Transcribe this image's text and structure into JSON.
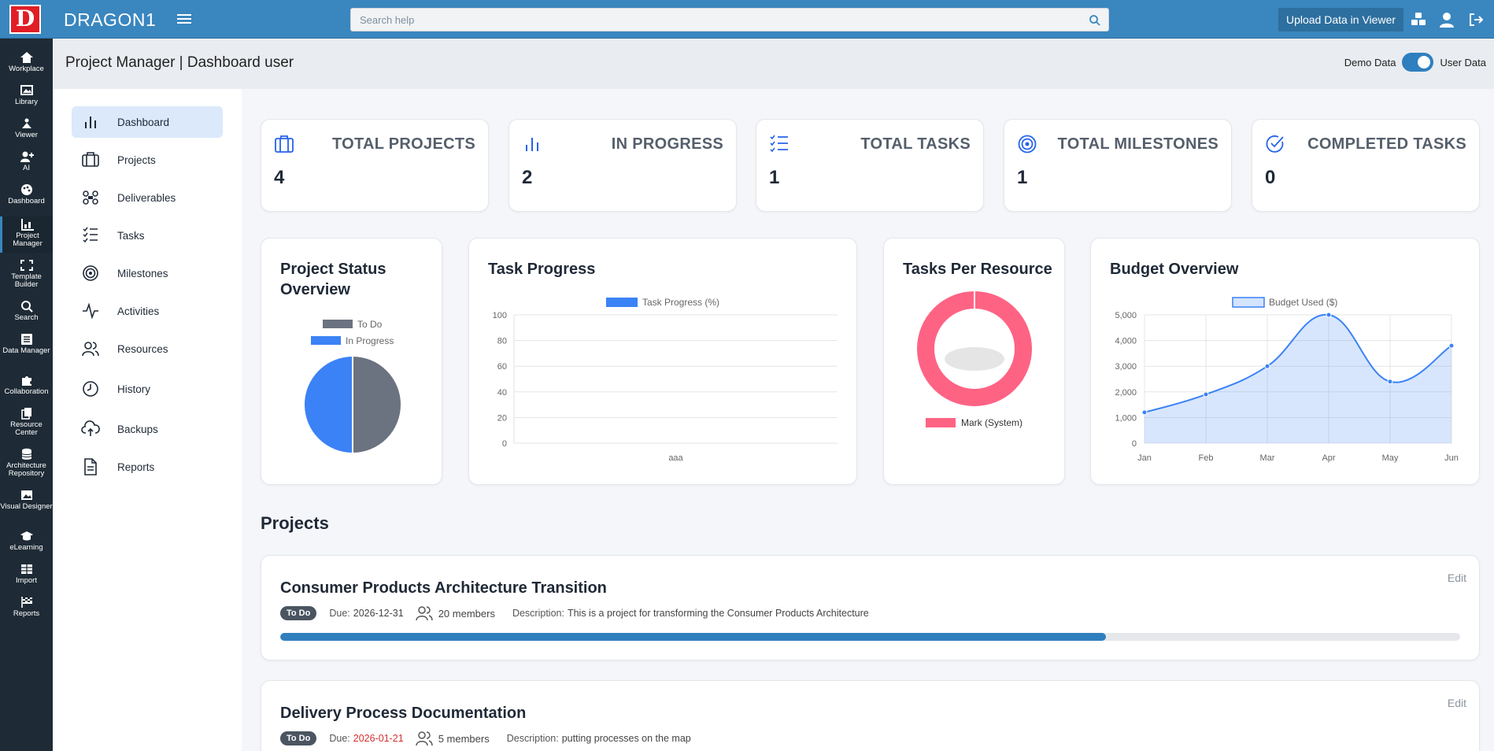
{
  "topbar": {
    "logo_letter": "D",
    "brand": "DRAGON1",
    "search_placeholder": "Search help",
    "upload_label": "Upload Data in Viewer"
  },
  "rail": {
    "items": [
      {
        "label": "Workplace",
        "icon": "home-icon"
      },
      {
        "label": "Library",
        "icon": "image-stack-icon"
      },
      {
        "label": "Viewer",
        "icon": "viewer-icon"
      },
      {
        "label": "AI",
        "icon": "user-plus-icon"
      },
      {
        "label": "Dashboard",
        "icon": "palette-icon"
      },
      {
        "label": "Project Manager",
        "icon": "chart-icon"
      },
      {
        "label": "Template Builder",
        "icon": "expand-icon"
      },
      {
        "label": "Search",
        "icon": "search-icon"
      },
      {
        "label": "Data Manager",
        "icon": "list-icon"
      },
      {
        "label": "Collaboration",
        "icon": "puzzle-icon"
      },
      {
        "label": "Resource Center",
        "icon": "copy-icon"
      },
      {
        "label": "Architecture Repository",
        "icon": "database-icon"
      },
      {
        "label": "Visual Designer",
        "icon": "picture-icon"
      },
      {
        "label": "eLearning",
        "icon": "graduation-cap-icon"
      },
      {
        "label": "Import",
        "icon": "table-icon"
      },
      {
        "label": "Reports",
        "icon": "flag-icon"
      }
    ]
  },
  "header": {
    "title": "Project Manager | Dashboard user",
    "demo_label": "Demo Data",
    "user_label": "User Data"
  },
  "sidenav": {
    "items": [
      {
        "label": "Dashboard"
      },
      {
        "label": "Projects"
      },
      {
        "label": "Deliverables"
      },
      {
        "label": "Tasks"
      },
      {
        "label": "Milestones"
      },
      {
        "label": "Activities"
      },
      {
        "label": "Resources"
      },
      {
        "label": "History"
      },
      {
        "label": "Backups"
      },
      {
        "label": "Reports"
      }
    ]
  },
  "stats": [
    {
      "label": "TOTAL PROJECTS",
      "value": "4"
    },
    {
      "label": "IN PROGRESS",
      "value": "2"
    },
    {
      "label": "TOTAL TASKS",
      "value": "1"
    },
    {
      "label": "TOTAL MILESTONES",
      "value": "1"
    },
    {
      "label": "COMPLETED TASKS",
      "value": "0"
    }
  ],
  "charts": {
    "status_title": "Project Status Overview",
    "task_title": "Task Progress",
    "resource_title": "Tasks Per Resource",
    "budget_title": "Budget Overview"
  },
  "chart_data": [
    {
      "type": "pie",
      "title": "Project Status Overview",
      "labels": [
        "To Do",
        "In Progress"
      ],
      "values": [
        2,
        2
      ],
      "colors": [
        "#6b7280",
        "#3b82f6"
      ]
    },
    {
      "type": "bar",
      "title": "Task Progress",
      "categories": [
        "aaa"
      ],
      "series": [
        {
          "name": "Task Progress (%)",
          "values": [
            0
          ]
        }
      ],
      "ylim": [
        0,
        100
      ],
      "yticks": [
        "0",
        "20",
        "40",
        "60",
        "80",
        "100"
      ],
      "color": "#3b82f6"
    },
    {
      "type": "pie",
      "title": "Tasks Per Resource",
      "labels": [
        "Mark (System)"
      ],
      "values": [
        1
      ],
      "colors": [
        "#ff6384"
      ]
    },
    {
      "type": "area",
      "title": "Budget Overview",
      "categories": [
        "Jan",
        "Feb",
        "Mar",
        "Apr",
        "May",
        "Jun"
      ],
      "series": [
        {
          "name": "Budget Used ($)",
          "values": [
            1200,
            1900,
            3000,
            5000,
            2400,
            3800
          ]
        }
      ],
      "ylim": [
        0,
        5000
      ],
      "yticks": [
        "0",
        "1,000",
        "2,000",
        "3,000",
        "4,000",
        "5,000"
      ],
      "color": "#3b82f6",
      "grid": true
    }
  ],
  "projects_section_title": "Projects",
  "projects": [
    {
      "name": "Consumer Products Architecture Transition",
      "status": "To Do",
      "due_label": "Due:",
      "due": "2026-12-31",
      "members": "20 members",
      "desc_label": "Description:",
      "description": "This is a project for transforming the Consumer Products Architecture",
      "progress": 0.7,
      "edit": "Edit"
    },
    {
      "name": "Delivery Process Documentation",
      "status": "To Do",
      "due_label": "Due:",
      "due": "2026-01-21",
      "members": "5 members",
      "desc_label": "Description:",
      "description": "putting processes on the map",
      "edit": "Edit"
    }
  ]
}
